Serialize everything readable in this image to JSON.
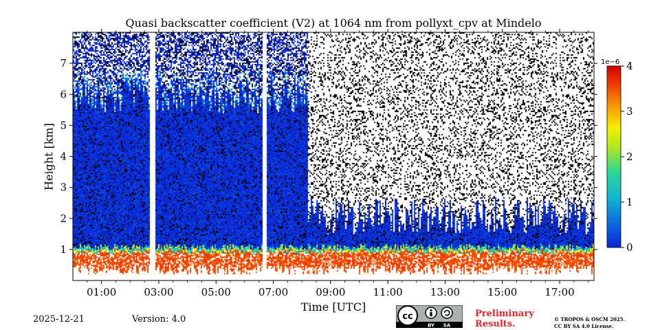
{
  "chart_data": {
    "type": "heatmap",
    "title": "Quasi backscatter coefficient (V2) at 1064 nm from pollyxt_cpv at Mindelo",
    "xlabel": "Time [UTC]",
    "ylabel": "Height [km]",
    "x_range_hours": [
      0,
      18.2
    ],
    "y_range_km": [
      0,
      8
    ],
    "x_ticks": [
      {
        "value": 1,
        "label": "01:00"
      },
      {
        "value": 3,
        "label": "03:00"
      },
      {
        "value": 5,
        "label": "05:00"
      },
      {
        "value": 7,
        "label": "07:00"
      },
      {
        "value": 9,
        "label": "09:00"
      },
      {
        "value": 11,
        "label": "11:00"
      },
      {
        "value": 13,
        "label": "13:00"
      },
      {
        "value": 15,
        "label": "15:00"
      },
      {
        "value": 17,
        "label": "17:00"
      }
    ],
    "y_ticks": [
      {
        "value": 1,
        "label": "1"
      },
      {
        "value": 2,
        "label": "2"
      },
      {
        "value": 3,
        "label": "3"
      },
      {
        "value": 4,
        "label": "4"
      },
      {
        "value": 5,
        "label": "5"
      },
      {
        "value": 6,
        "label": "6"
      },
      {
        "value": 7,
        "label": "7"
      }
    ],
    "colorbar": {
      "min": 0,
      "max": 4,
      "multiplier": "1e−6",
      "ticks": [
        {
          "value": 0,
          "label": "0"
        },
        {
          "value": 1,
          "label": "1"
        },
        {
          "value": 2,
          "label": "2"
        },
        {
          "value": 3,
          "label": "3"
        },
        {
          "value": 4,
          "label": "4"
        }
      ],
      "colors": [
        "#0b22d6",
        "#0a8ae0",
        "#1bd0b0",
        "#7fe030",
        "#f0f000",
        "#f8a000",
        "#f03000",
        "#c80000"
      ]
    },
    "profile_features": {
      "aerosol_layer_top_km": {
        "before_08": 6.0,
        "after_08": 1.5
      },
      "near_surface_high_values_km": [
        0.2,
        1.1
      ],
      "data_gaps_utc": [
        "02:40-02:50",
        "06:35-06:45"
      ]
    }
  },
  "footer": {
    "date": "2025-12-21",
    "version": "Version: 4.0",
    "preliminary_line1": "Preliminary",
    "preliminary_line2": "Results.",
    "copyright_line1": "© TROPOS & OSCM 2025.",
    "copyright_line2": "CC BY SA 4.0 License."
  },
  "license_badge": {
    "by": "BY",
    "sa": "SA"
  },
  "colors": {
    "prelim": "#e8232a"
  }
}
